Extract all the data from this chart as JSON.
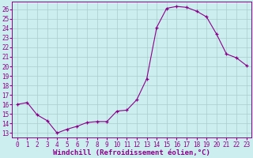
{
  "title": "",
  "xlabel": "Windchill (Refroidissement éolien,°C)",
  "x": [
    0,
    1,
    2,
    3,
    4,
    5,
    6,
    7,
    8,
    9,
    10,
    11,
    12,
    13,
    14,
    15,
    16,
    17,
    18,
    19,
    20,
    21,
    22,
    23
  ],
  "y": [
    16.0,
    16.2,
    14.9,
    14.3,
    13.0,
    13.4,
    13.7,
    14.1,
    14.2,
    14.2,
    15.3,
    15.4,
    16.5,
    18.7,
    24.1,
    26.1,
    26.3,
    26.2,
    25.8,
    25.2,
    23.4,
    21.3,
    20.9,
    20.1
  ],
  "line_color": "#8B008B",
  "marker_color": "#8B008B",
  "bg_color": "#cceeee",
  "grid_color": "#aacccc",
  "ylim_min": 12.5,
  "ylim_max": 26.8,
  "xlim_min": -0.5,
  "xlim_max": 23.5,
  "yticks": [
    13,
    14,
    15,
    16,
    17,
    18,
    19,
    20,
    21,
    22,
    23,
    24,
    25,
    26
  ],
  "xticks": [
    0,
    1,
    2,
    3,
    4,
    5,
    6,
    7,
    8,
    9,
    10,
    11,
    12,
    13,
    14,
    15,
    16,
    17,
    18,
    19,
    20,
    21,
    22,
    23
  ],
  "tick_labelsize": 5.5,
  "xlabel_fontsize": 6.5
}
